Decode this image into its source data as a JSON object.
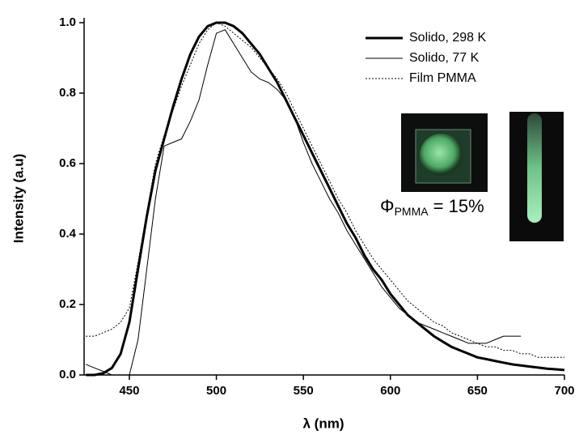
{
  "chart_data": {
    "type": "line",
    "xlabel": "λ (nm)",
    "ylabel": "Intensity (a.u)",
    "x": [
      425,
      430,
      435,
      440,
      445,
      450,
      455,
      460,
      465,
      470,
      475,
      480,
      485,
      490,
      495,
      500,
      505,
      510,
      515,
      520,
      525,
      530,
      535,
      540,
      545,
      550,
      555,
      560,
      565,
      570,
      575,
      580,
      585,
      590,
      595,
      600,
      605,
      610,
      615,
      620,
      625,
      630,
      635,
      640,
      645,
      650,
      655,
      660,
      665,
      670,
      675,
      680,
      685,
      690,
      695,
      700
    ],
    "series": [
      {
        "name": "Solido, 298 K",
        "color": "#000000",
        "width": 3,
        "dash": "solid",
        "values": [
          0.0,
          0.0,
          0.005,
          0.02,
          0.06,
          0.15,
          0.3,
          0.45,
          0.58,
          0.67,
          0.76,
          0.84,
          0.91,
          0.96,
          0.99,
          1.0,
          1.0,
          0.99,
          0.97,
          0.94,
          0.91,
          0.87,
          0.83,
          0.78,
          0.73,
          0.68,
          0.63,
          0.58,
          0.53,
          0.48,
          0.43,
          0.39,
          0.34,
          0.3,
          0.27,
          0.23,
          0.2,
          0.17,
          0.15,
          0.13,
          0.11,
          0.095,
          0.08,
          0.07,
          0.06,
          0.05,
          0.045,
          0.04,
          0.035,
          0.03,
          0.027,
          0.024,
          0.021,
          0.018,
          0.016,
          0.014
        ]
      },
      {
        "name": "Solido, 77 K",
        "color": "#000000",
        "width": 1,
        "dash": "solid",
        "values": [
          0.03,
          0.02,
          0.01,
          0.0,
          0.0,
          0.0,
          0.1,
          0.3,
          0.5,
          0.65,
          0.66,
          0.67,
          0.72,
          0.78,
          0.88,
          0.97,
          0.98,
          0.94,
          0.9,
          0.86,
          0.84,
          0.83,
          0.81,
          0.78,
          0.73,
          0.66,
          0.6,
          0.55,
          0.5,
          0.46,
          0.41,
          0.37,
          0.33,
          0.29,
          0.25,
          0.22,
          0.19,
          0.17,
          0.15,
          0.14,
          0.13,
          0.12,
          0.11,
          0.1,
          0.09,
          0.09,
          0.09,
          0.1,
          0.11,
          0.11,
          0.11,
          null,
          null,
          null,
          null,
          null
        ]
      },
      {
        "name": "Film PMMA",
        "color": "#000000",
        "width": 1,
        "dash": "dotted",
        "values": [
          0.11,
          0.11,
          0.12,
          0.13,
          0.15,
          0.19,
          0.32,
          0.46,
          0.6,
          0.68,
          0.75,
          0.82,
          0.88,
          0.94,
          0.98,
          1.0,
          0.99,
          0.97,
          0.95,
          0.93,
          0.9,
          0.87,
          0.84,
          0.8,
          0.75,
          0.7,
          0.65,
          0.6,
          0.55,
          0.5,
          0.46,
          0.41,
          0.37,
          0.33,
          0.3,
          0.27,
          0.24,
          0.21,
          0.19,
          0.17,
          0.15,
          0.14,
          0.12,
          0.11,
          0.1,
          0.09,
          0.08,
          0.08,
          0.07,
          0.07,
          0.06,
          0.06,
          0.05,
          0.05,
          0.05,
          0.05
        ]
      }
    ],
    "xlim": [
      424,
      700
    ],
    "xticks": [
      450,
      500,
      550,
      600,
      650,
      700
    ],
    "ylim": [
      0,
      1.0
    ],
    "yticks": [
      {
        "value": 0,
        "label": "0.0"
      },
      0.2,
      0.4,
      0.6,
      0.8,
      {
        "value": 1.0,
        "label": "1.0"
      }
    ],
    "grid": false,
    "legend": "upper right",
    "annotation": {
      "symbol": "Φ",
      "subscript": "PMMA",
      "text": " = 15%"
    }
  }
}
